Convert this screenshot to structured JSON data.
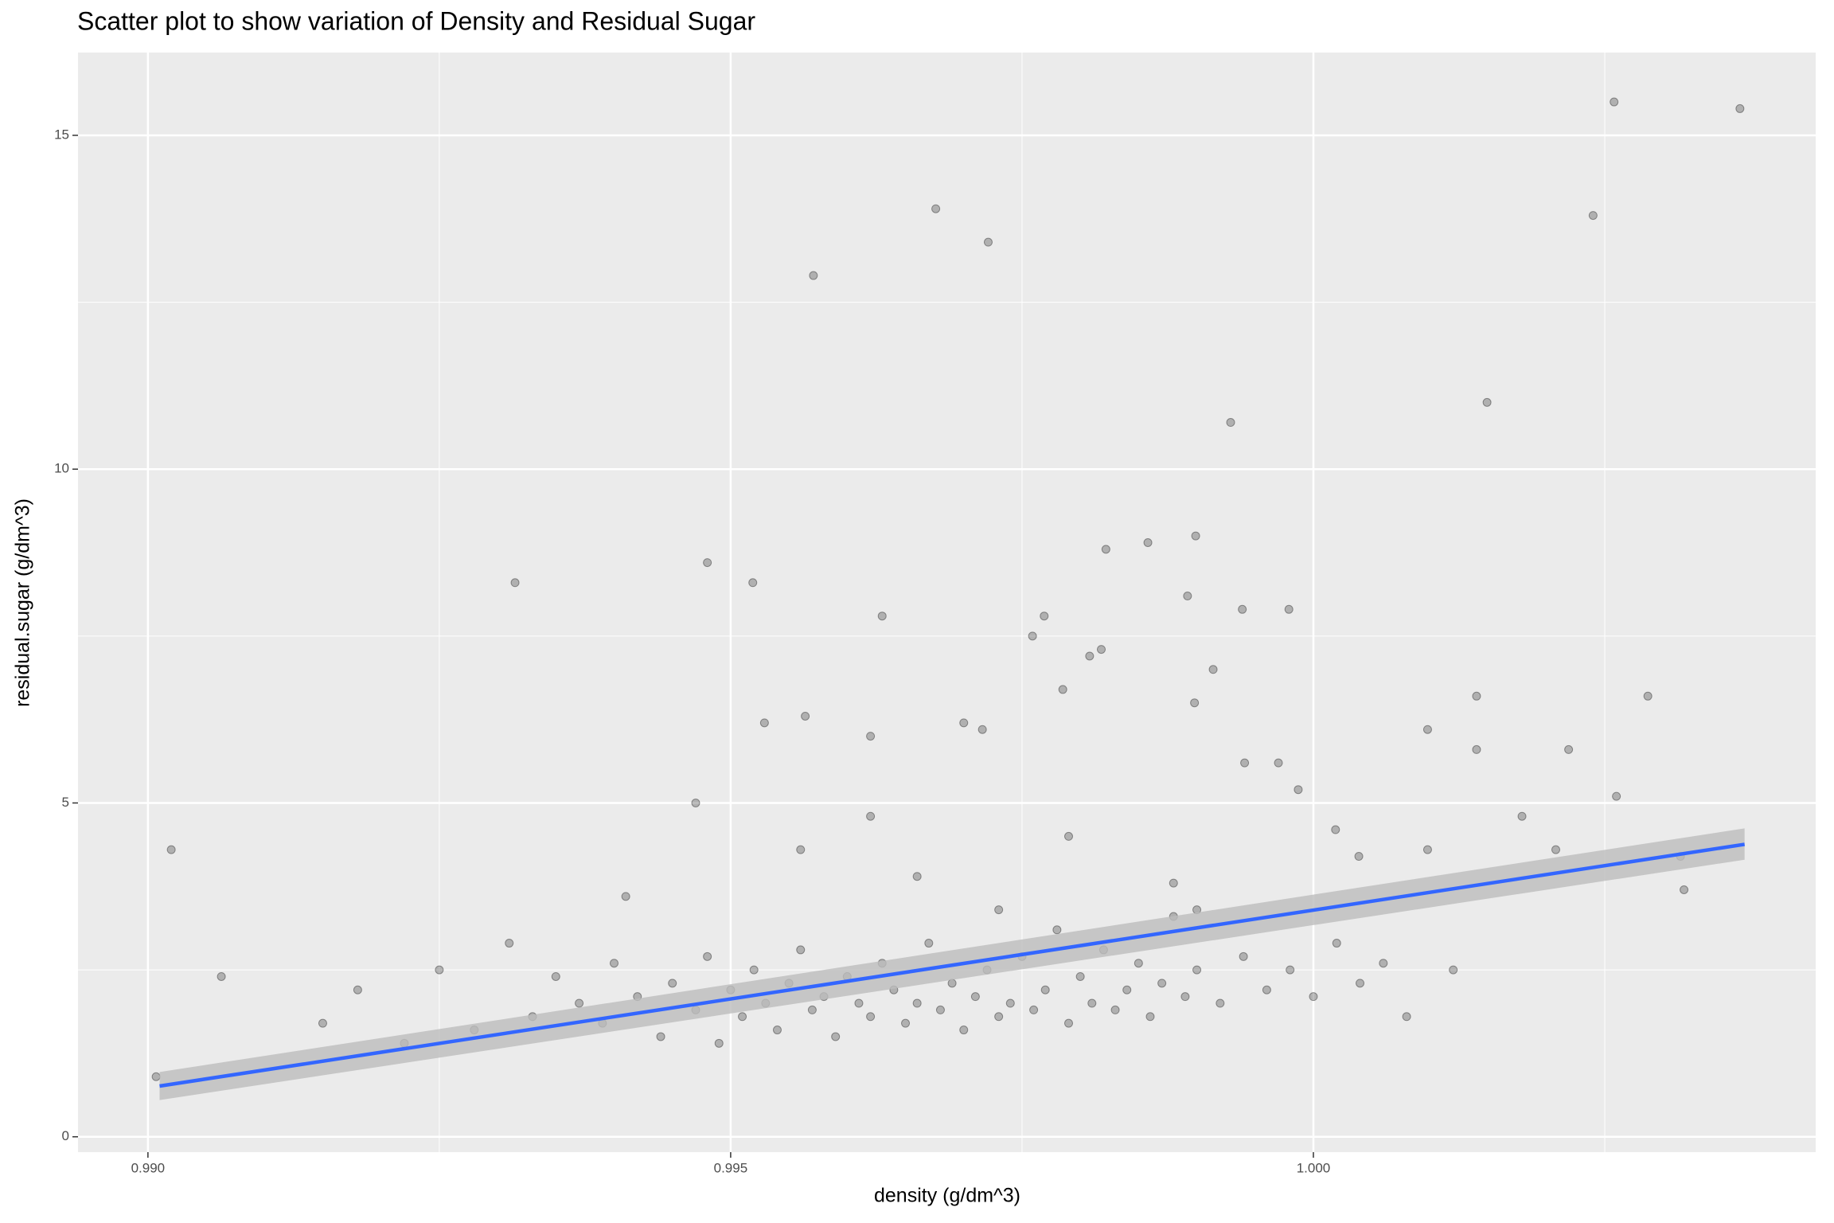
{
  "chart_data": {
    "type": "scatter",
    "title": "Scatter plot to show variation of Density and Residual Sugar",
    "x_label": "density (g/dm^3)",
    "y_label": "residual.sugar (g/dm^3)",
    "xlim": [
      0.9894,
      1.00431
    ],
    "ylim": [
      -0.23,
      16.24
    ],
    "xticks": [
      {
        "value": 0.99,
        "label": "0.990"
      },
      0.995,
      {
        "value": 1.0,
        "label": "1.000"
      }
    ],
    "yticks": [
      0,
      5,
      10,
      15
    ],
    "grid": true,
    "points": {
      "color": "#000000",
      "opacity": 0.25,
      "x": [
        1.00366,
        1.00258,
        1.0024,
        0.99676,
        0.99721,
        0.99571,
        1.00149,
        0.99929,
        0.99315,
        0.9948,
        0.99519,
        0.99822,
        0.99858,
        0.99899,
        0.99892,
        0.99939,
        0.99979,
        0.9963,
        0.99769,
        0.99759,
        0.99818,
        0.99808,
        0.99914,
        0.99898,
        1.0014,
        1.00287,
        0.9902,
        0.99063,
        1.00219,
        1.0014,
        1.00098,
        1.0026,
        1.00179,
        0.99007,
        1.00318,
        1.00315,
        0.99564,
        0.99529,
        0.9962,
        0.997,
        0.99716,
        0.99785,
        0.99941,
        0.9997,
        0.99987,
        1.00019,
        1.00039,
        1.00098,
        1.00208,
        0.9915,
        0.9918,
        0.9922,
        0.9925,
        0.9928,
        0.9931,
        0.9933,
        0.9935,
        0.9937,
        0.9939,
        0.994,
        0.9942,
        0.9944,
        0.9945,
        0.9947,
        0.9948,
        0.9949,
        0.995,
        0.9951,
        0.9952,
        0.9953,
        0.9954,
        0.9955,
        0.9956,
        0.9957,
        0.9958,
        0.9959,
        0.996,
        0.9961,
        0.9962,
        0.9963,
        0.9964,
        0.9965,
        0.9966,
        0.9967,
        0.9968,
        0.9969,
        0.997,
        0.9971,
        0.9972,
        0.9973,
        0.9974,
        0.9975,
        0.9976,
        0.9977,
        0.9978,
        0.9979,
        0.998,
        0.9981,
        0.9982,
        0.9983,
        0.9984,
        0.9985,
        0.9986,
        0.9987,
        0.9988,
        0.9989,
        0.999,
        0.9992,
        0.9994,
        0.9996,
        0.9998,
        1.0,
        1.0002,
        1.0004,
        1.0006,
        1.0008,
        1.0012,
        0.9941,
        0.9962,
        0.9973,
        0.9966,
        0.9979,
        0.999,
        0.9956,
        0.9947,
        0.9988
      ],
      "y": [
        15.4,
        15.5,
        13.8,
        13.9,
        13.4,
        12.9,
        11.0,
        10.7,
        8.3,
        8.6,
        8.3,
        8.8,
        8.9,
        9.0,
        8.1,
        7.9,
        7.9,
        7.8,
        7.8,
        7.5,
        7.3,
        7.2,
        7.0,
        6.5,
        6.6,
        6.6,
        4.3,
        2.4,
        5.8,
        5.8,
        6.1,
        5.1,
        4.8,
        0.9,
        3.7,
        4.2,
        6.3,
        6.2,
        6.0,
        6.2,
        6.1,
        6.7,
        5.6,
        5.6,
        5.2,
        4.6,
        4.2,
        4.3,
        4.3,
        1.7,
        2.2,
        1.4,
        2.5,
        1.6,
        2.9,
        1.8,
        2.4,
        2.0,
        1.7,
        2.6,
        2.1,
        1.5,
        2.3,
        1.9,
        2.7,
        1.4,
        2.2,
        1.8,
        2.5,
        2.0,
        1.6,
        2.3,
        2.8,
        1.9,
        2.1,
        1.5,
        2.4,
        2.0,
        1.8,
        2.6,
        2.2,
        1.7,
        2.0,
        2.9,
        1.9,
        2.3,
        1.6,
        2.1,
        2.5,
        1.8,
        2.0,
        2.7,
        1.9,
        2.2,
        3.1,
        1.7,
        2.4,
        2.0,
        2.8,
        1.9,
        2.2,
        2.6,
        1.8,
        2.3,
        3.3,
        2.1,
        2.5,
        2.0,
        2.7,
        2.2,
        2.5,
        2.1,
        2.9,
        2.3,
        2.6,
        1.8,
        2.5,
        3.6,
        4.8,
        3.4,
        3.9,
        4.5,
        3.4,
        4.3,
        5.0,
        3.8
      ]
    },
    "fit": {
      "color": "#3366ff",
      "band_color": "#bdbdbd",
      "x": [
        0.9901,
        1.0037
      ],
      "y": [
        0.76,
        4.38
      ],
      "lower": [
        0.55,
        4.15
      ],
      "upper": [
        0.97,
        4.62
      ]
    }
  }
}
